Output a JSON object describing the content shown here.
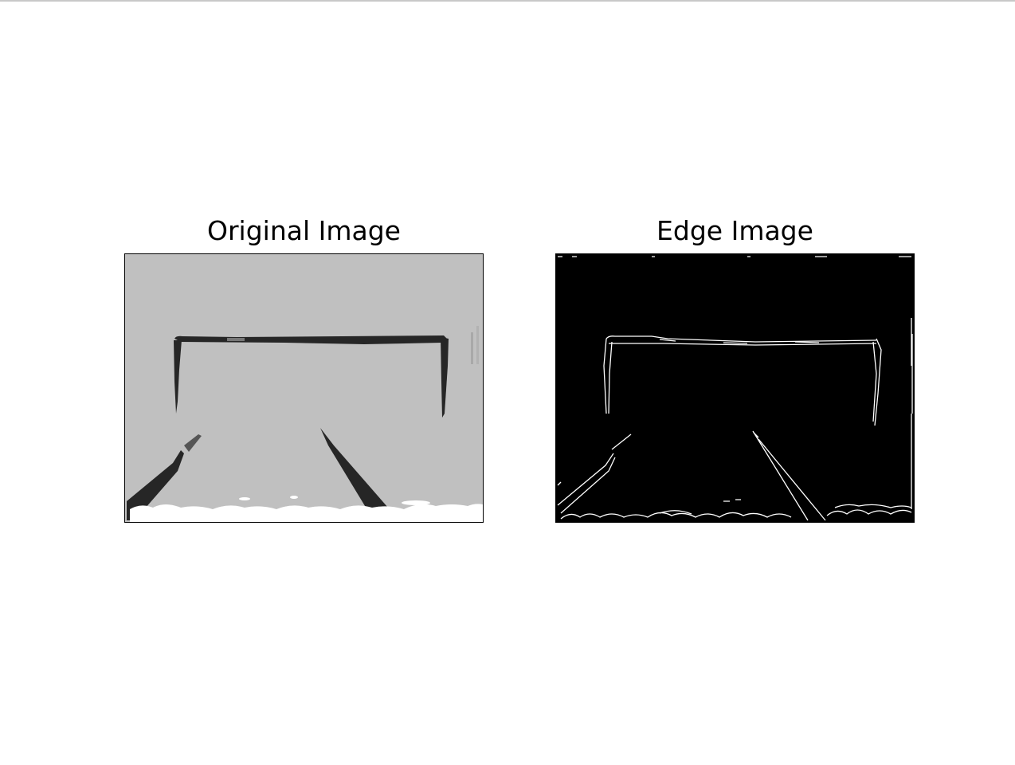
{
  "figure": {
    "panels": [
      {
        "title": "Original Image",
        "colors": {
          "background": "#c0c0c0",
          "marks": "#262626",
          "foreground_edge": "#ffffff"
        }
      },
      {
        "title": "Edge Image",
        "colors": {
          "background": "#000000",
          "edges": "#ffffff"
        }
      }
    ]
  }
}
